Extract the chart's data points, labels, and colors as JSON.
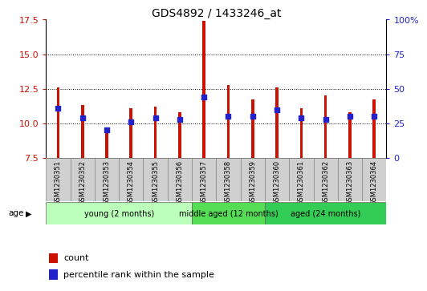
{
  "title": "GDS4892 / 1433246_at",
  "samples": [
    "GSM1230351",
    "GSM1230352",
    "GSM1230353",
    "GSM1230354",
    "GSM1230355",
    "GSM1230356",
    "GSM1230357",
    "GSM1230358",
    "GSM1230359",
    "GSM1230360",
    "GSM1230361",
    "GSM1230362",
    "GSM1230363",
    "GSM1230364"
  ],
  "count_values": [
    12.6,
    11.3,
    9.5,
    11.1,
    11.2,
    10.8,
    17.4,
    12.8,
    11.7,
    12.6,
    11.1,
    12.0,
    10.8,
    11.7
  ],
  "percentile_values": [
    11.1,
    10.4,
    9.5,
    10.1,
    10.4,
    10.3,
    11.9,
    10.5,
    10.5,
    11.0,
    10.4,
    10.3,
    10.5,
    10.5
  ],
  "ymin": 7.5,
  "ymax": 17.5,
  "y_ticks": [
    7.5,
    10.0,
    12.5,
    15.0,
    17.5
  ],
  "right_yticks": [
    0,
    25,
    50,
    75,
    100
  ],
  "right_yticklabels": [
    "0",
    "25",
    "50",
    "75",
    "100%"
  ],
  "bar_color": "#cc1100",
  "percentile_color": "#2222cc",
  "bar_width": 0.12,
  "percentile_size": 18,
  "groups": [
    {
      "label": "young (2 months)",
      "start": 0,
      "end": 5,
      "color": "#bbffbb"
    },
    {
      "label": "middle aged (12 months)",
      "start": 6,
      "end": 8,
      "color": "#55dd55"
    },
    {
      "label": "aged (24 months)",
      "start": 9,
      "end": 13,
      "color": "#33cc55"
    }
  ],
  "age_label": "age",
  "legend_count_label": "count",
  "legend_percentile_label": "percentile rank within the sample",
  "grid_color": "black",
  "sample_box_color": "#d0d0d0",
  "tick_color_left": "#cc1100",
  "tick_color_right": "#2222cc"
}
